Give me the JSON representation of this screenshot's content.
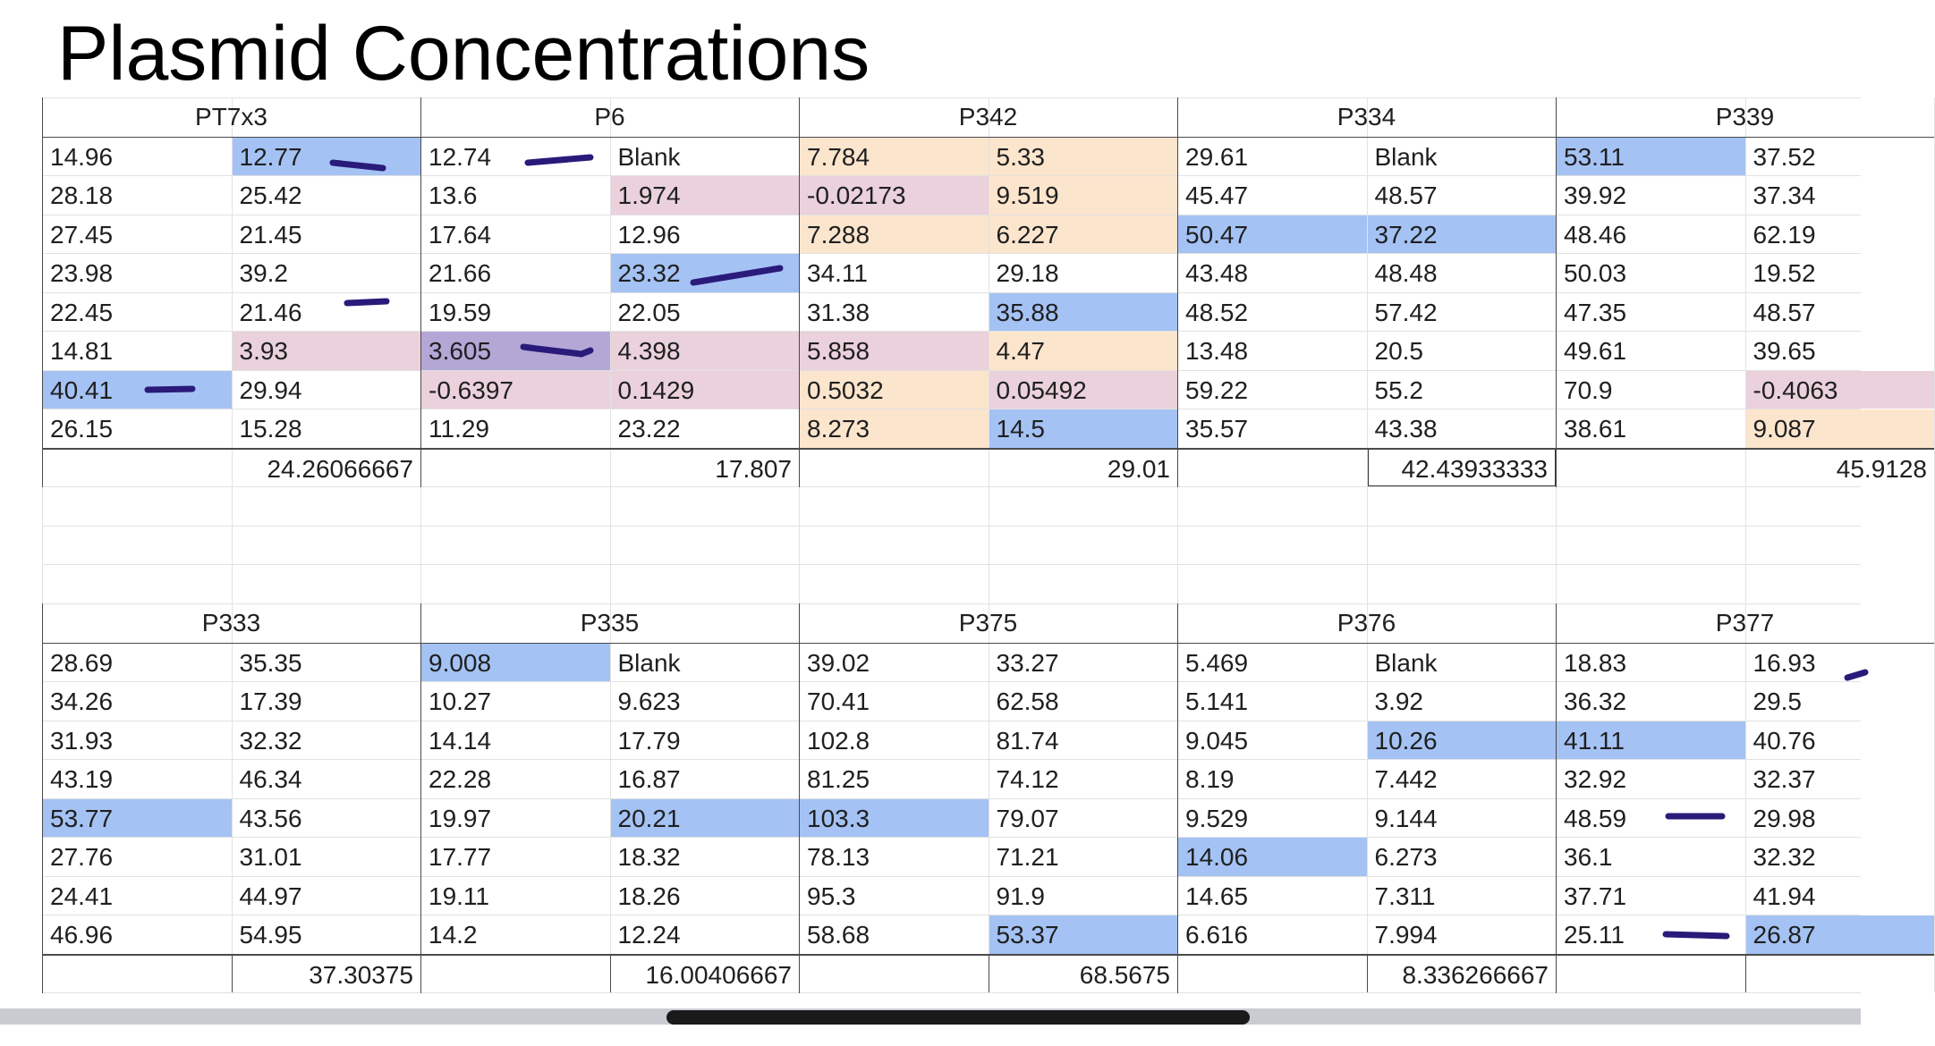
{
  "title": "Plasmid Concentrations",
  "colors": {
    "blue": "#a4c2f4",
    "pink": "#ead1dc",
    "peach": "#fce5cd",
    "purple": "#b4a7d6",
    "marker": "#2a1a7a"
  },
  "blocks": [
    {
      "name": "PT7x3",
      "rows": [
        [
          "14.96",
          "12.77"
        ],
        [
          "28.18",
          "25.42"
        ],
        [
          "27.45",
          "21.45"
        ],
        [
          "23.98",
          "39.2"
        ],
        [
          "22.45",
          "21.46"
        ],
        [
          "14.81",
          "3.93"
        ],
        [
          "40.41",
          "29.94"
        ],
        [
          "26.15",
          "15.28"
        ]
      ],
      "fills": [
        [
          "",
          "blue"
        ],
        [
          "",
          ""
        ],
        [
          "",
          ""
        ],
        [
          "",
          ""
        ],
        [
          "",
          ""
        ],
        [
          "",
          "pink"
        ],
        [
          "blue",
          ""
        ],
        [
          "",
          ""
        ]
      ],
      "average": "24.26066667"
    },
    {
      "name": "P6",
      "rows": [
        [
          "12.74",
          "Blank"
        ],
        [
          "13.6",
          "1.974"
        ],
        [
          "17.64",
          "12.96"
        ],
        [
          "21.66",
          "23.32"
        ],
        [
          "19.59",
          "22.05"
        ],
        [
          "3.605",
          "4.398"
        ],
        [
          "-0.6397",
          "0.1429"
        ],
        [
          "11.29",
          "23.22"
        ]
      ],
      "fills": [
        [
          "",
          ""
        ],
        [
          "",
          "pink"
        ],
        [
          "",
          ""
        ],
        [
          "",
          "blue"
        ],
        [
          "",
          ""
        ],
        [
          "purple",
          "pink"
        ],
        [
          "pink",
          "pink"
        ],
        [
          "",
          ""
        ]
      ],
      "average": "17.807"
    },
    {
      "name": "P342",
      "rows": [
        [
          "7.784",
          "5.33"
        ],
        [
          "-0.02173",
          "9.519"
        ],
        [
          "7.288",
          "6.227"
        ],
        [
          "34.11",
          "29.18"
        ],
        [
          "31.38",
          "35.88"
        ],
        [
          "5.858",
          "4.47"
        ],
        [
          "0.5032",
          "0.05492"
        ],
        [
          "8.273",
          "14.5"
        ]
      ],
      "fills": [
        [
          "peach",
          "peach"
        ],
        [
          "pink",
          "peach"
        ],
        [
          "peach",
          "peach"
        ],
        [
          "",
          ""
        ],
        [
          "",
          "blue"
        ],
        [
          "pink",
          "peach"
        ],
        [
          "peach",
          "pink"
        ],
        [
          "peach",
          "blue"
        ]
      ],
      "average": "29.01"
    },
    {
      "name": "P334",
      "rows": [
        [
          "29.61",
          "Blank"
        ],
        [
          "45.47",
          "48.57"
        ],
        [
          "50.47",
          "37.22"
        ],
        [
          "43.48",
          "48.48"
        ],
        [
          "48.52",
          "57.42"
        ],
        [
          "13.48",
          "20.5"
        ],
        [
          "59.22",
          "55.2"
        ],
        [
          "35.57",
          "43.38"
        ]
      ],
      "fills": [
        [
          "",
          ""
        ],
        [
          "",
          ""
        ],
        [
          "blue",
          "blue"
        ],
        [
          "",
          ""
        ],
        [
          "",
          ""
        ],
        [
          "",
          ""
        ],
        [
          "",
          ""
        ],
        [
          "",
          ""
        ]
      ],
      "average": "42.43933333"
    },
    {
      "name": "P339",
      "rows": [
        [
          "53.11",
          "37.52"
        ],
        [
          "39.92",
          "37.34"
        ],
        [
          "48.46",
          "62.19"
        ],
        [
          "50.03",
          "19.52"
        ],
        [
          "47.35",
          "48.57"
        ],
        [
          "49.61",
          "39.65"
        ],
        [
          "70.9",
          "-0.4063"
        ],
        [
          "38.61",
          "9.087"
        ]
      ],
      "fills": [
        [
          "blue",
          ""
        ],
        [
          "",
          ""
        ],
        [
          "",
          ""
        ],
        [
          "",
          ""
        ],
        [
          "",
          ""
        ],
        [
          "",
          ""
        ],
        [
          "",
          "pink"
        ],
        [
          "",
          "peach"
        ]
      ],
      "average": "45.9128"
    },
    {
      "name": "P333",
      "rows": [
        [
          "28.69",
          "35.35"
        ],
        [
          "34.26",
          "17.39"
        ],
        [
          "31.93",
          "32.32"
        ],
        [
          "43.19",
          "46.34"
        ],
        [
          "53.77",
          "43.56"
        ],
        [
          "27.76",
          "31.01"
        ],
        [
          "24.41",
          "44.97"
        ],
        [
          "46.96",
          "54.95"
        ]
      ],
      "fills": [
        [
          "",
          ""
        ],
        [
          "",
          ""
        ],
        [
          "",
          ""
        ],
        [
          "",
          ""
        ],
        [
          "blue",
          ""
        ],
        [
          "",
          ""
        ],
        [
          "",
          ""
        ],
        [
          "",
          ""
        ]
      ],
      "average": "37.30375"
    },
    {
      "name": "P335",
      "rows": [
        [
          "9.008",
          "Blank"
        ],
        [
          "10.27",
          "9.623"
        ],
        [
          "14.14",
          "17.79"
        ],
        [
          "22.28",
          "16.87"
        ],
        [
          "19.97",
          "20.21"
        ],
        [
          "17.77",
          "18.32"
        ],
        [
          "19.11",
          "18.26"
        ],
        [
          "14.2",
          "12.24"
        ]
      ],
      "fills": [
        [
          "blue",
          ""
        ],
        [
          "",
          ""
        ],
        [
          "",
          ""
        ],
        [
          "",
          ""
        ],
        [
          "",
          "blue"
        ],
        [
          "",
          ""
        ],
        [
          "",
          ""
        ],
        [
          "",
          ""
        ]
      ],
      "average": "16.00406667"
    },
    {
      "name": "P375",
      "rows": [
        [
          "39.02",
          "33.27"
        ],
        [
          "70.41",
          "62.58"
        ],
        [
          "102.8",
          "81.74"
        ],
        [
          "81.25",
          "74.12"
        ],
        [
          "103.3",
          "79.07"
        ],
        [
          "78.13",
          "71.21"
        ],
        [
          "95.3",
          "91.9"
        ],
        [
          "58.68",
          "53.37"
        ]
      ],
      "fills": [
        [
          "",
          ""
        ],
        [
          "",
          ""
        ],
        [
          "",
          ""
        ],
        [
          "",
          ""
        ],
        [
          "blue",
          ""
        ],
        [
          "",
          ""
        ],
        [
          "",
          ""
        ],
        [
          "",
          "blue"
        ]
      ],
      "average": "68.5675"
    },
    {
      "name": "P376",
      "rows": [
        [
          "5.469",
          "Blank"
        ],
        [
          "5.141",
          "3.92"
        ],
        [
          "9.045",
          "10.26"
        ],
        [
          "8.19",
          "7.442"
        ],
        [
          "9.529",
          "9.144"
        ],
        [
          "14.06",
          "6.273"
        ],
        [
          "14.65",
          "7.311"
        ],
        [
          "6.616",
          "7.994"
        ]
      ],
      "fills": [
        [
          "",
          ""
        ],
        [
          "",
          ""
        ],
        [
          "",
          "blue"
        ],
        [
          "",
          ""
        ],
        [
          "",
          ""
        ],
        [
          "blue",
          ""
        ],
        [
          "",
          ""
        ],
        [
          "",
          ""
        ]
      ],
      "average": "8.336266667"
    },
    {
      "name": "P377",
      "rows": [
        [
          "18.83",
          "16.93"
        ],
        [
          "36.32",
          "29.5"
        ],
        [
          "41.11",
          "40.76"
        ],
        [
          "32.92",
          "32.37"
        ],
        [
          "48.59",
          "29.98"
        ],
        [
          "36.1",
          "32.32"
        ],
        [
          "37.71",
          "41.94"
        ],
        [
          "25.11",
          "26.87"
        ]
      ],
      "fills": [
        [
          "",
          ""
        ],
        [
          "",
          ""
        ],
        [
          "blue",
          ""
        ],
        [
          "",
          ""
        ],
        [
          "",
          ""
        ],
        [
          "",
          ""
        ],
        [
          "",
          ""
        ],
        [
          "",
          "blue"
        ]
      ],
      "average": ""
    }
  ]
}
